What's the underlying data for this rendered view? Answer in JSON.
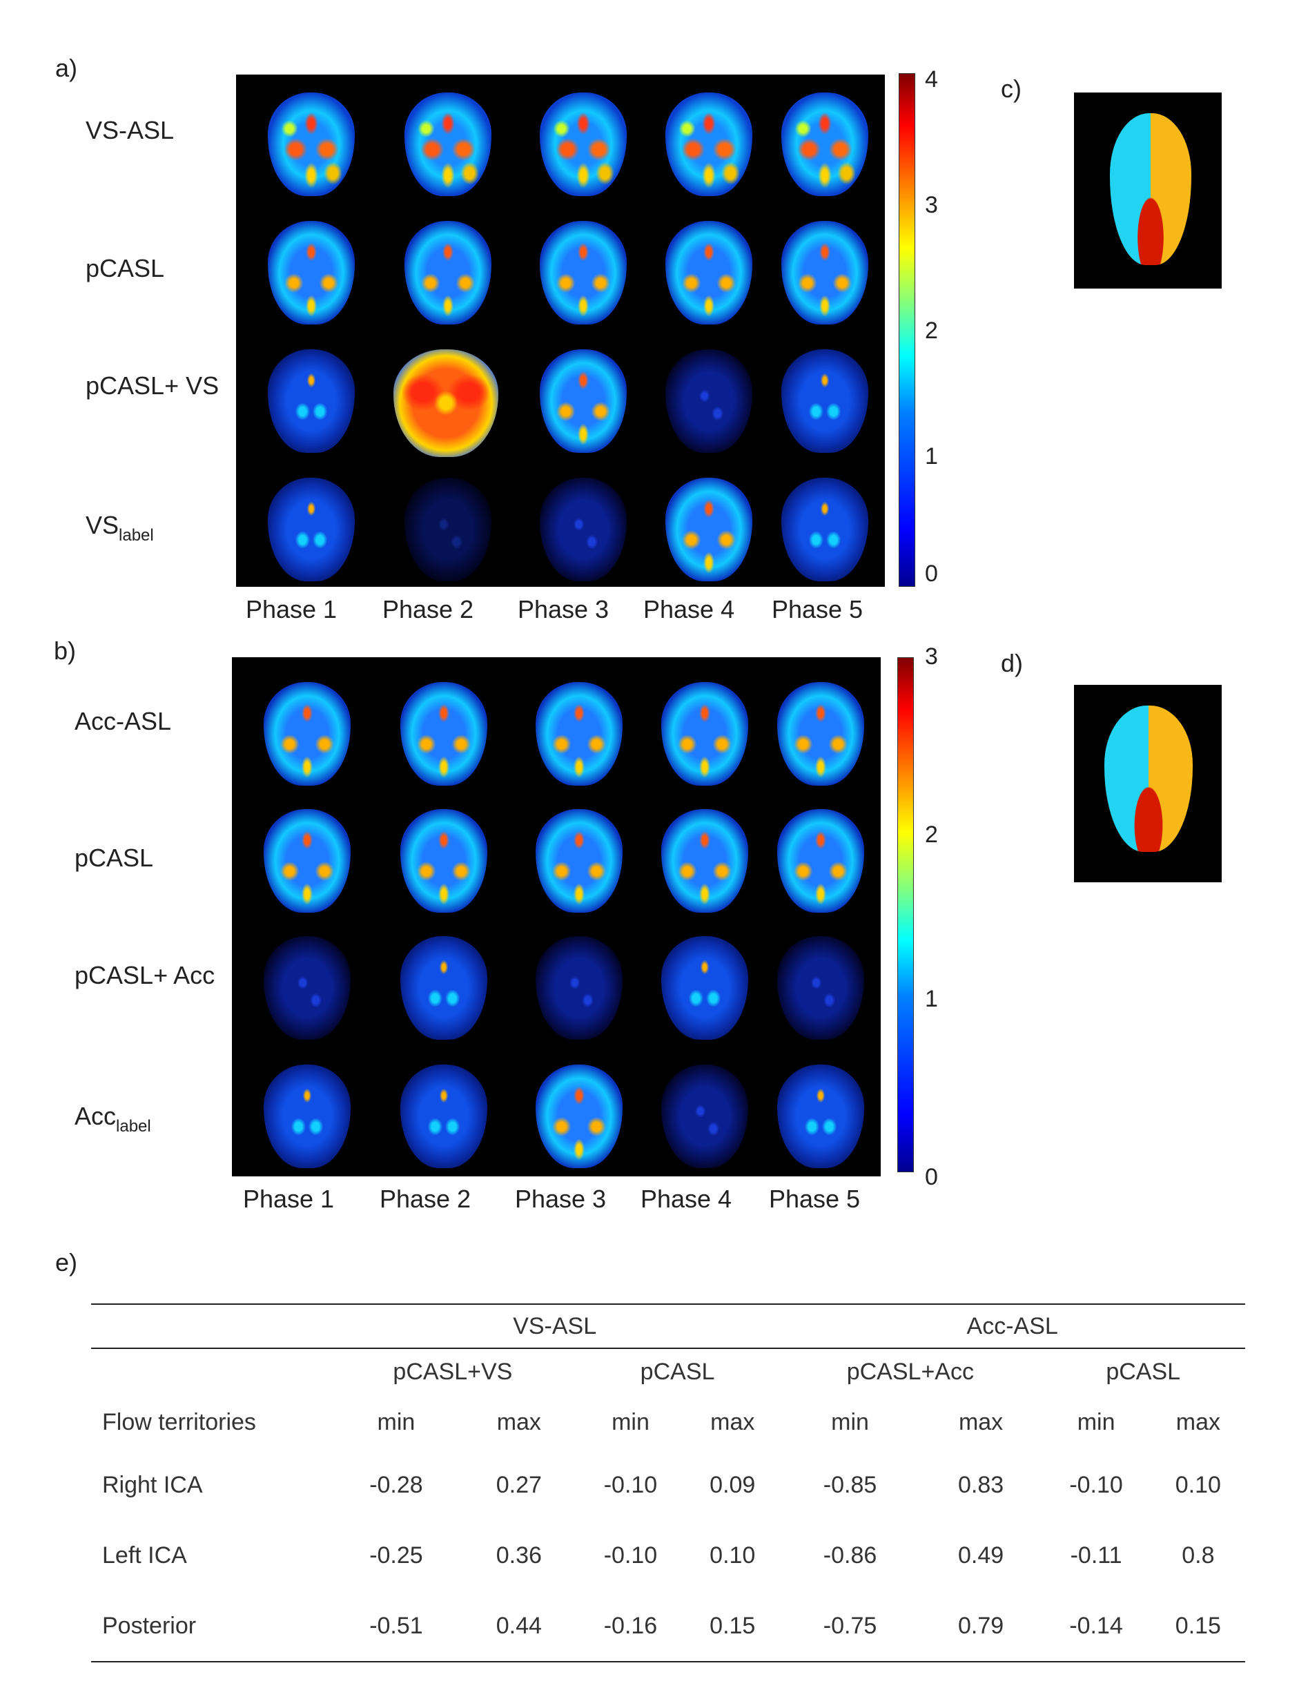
{
  "panels": {
    "a": {
      "label": "a)",
      "rows": [
        "VS-ASL",
        "pCASL",
        "pCASL+ VS"
      ],
      "last_row_base": "VS",
      "last_row_sub": "label",
      "phases": [
        "Phase 1",
        "Phase 2",
        "Phase 3",
        "Phase 4",
        "Phase 5"
      ],
      "colorbar_ticks": [
        "4",
        "3",
        "2",
        "1",
        "0"
      ]
    },
    "b": {
      "label": "b)",
      "rows": [
        "Acc-ASL",
        "pCASL",
        "pCASL+ Acc"
      ],
      "last_row_base": "Acc",
      "last_row_sub": "label",
      "phases": [
        "Phase 1",
        "Phase 2",
        "Phase 3",
        "Phase 4",
        "Phase 5"
      ],
      "colorbar_ticks": [
        "3",
        "2",
        "1",
        "0"
      ]
    },
    "c": {
      "label": "c)"
    },
    "d": {
      "label": "d)"
    },
    "e": {
      "label": "e)"
    }
  },
  "colormap": {
    "colors": [
      "#00008f",
      "#0000ff",
      "#00ffff",
      "#ffff00",
      "#ff0000",
      "#800000"
    ]
  },
  "territory_colors": {
    "right_ica": "#22d4f2",
    "left_ica": "#f8b818",
    "posterior": "#d61a00"
  },
  "table": {
    "group_headers": [
      "VS-ASL",
      "Acc-ASL"
    ],
    "sub_headers": [
      "pCASL+VS",
      "pCASL",
      "pCASL+Acc",
      "pCASL"
    ],
    "row_header": "Flow territories",
    "col_headers": [
      "min",
      "max",
      "min",
      "max",
      "min",
      "max",
      "min",
      "max"
    ],
    "rows": [
      {
        "name": "Right ICA",
        "values": [
          "-0.28",
          "0.27",
          "-0.10",
          "0.09",
          "-0.85",
          "0.83",
          "-0.10",
          "0.10"
        ]
      },
      {
        "name": "Left ICA",
        "values": [
          "-0.25",
          "0.36",
          "-0.10",
          "0.10",
          "-0.86",
          "0.49",
          "-0.11",
          "0.8"
        ]
      },
      {
        "name": "Posterior",
        "values": [
          "-0.51",
          "0.44",
          "-0.16",
          "0.15",
          "-0.75",
          "0.79",
          "-0.14",
          "0.15"
        ]
      }
    ]
  }
}
